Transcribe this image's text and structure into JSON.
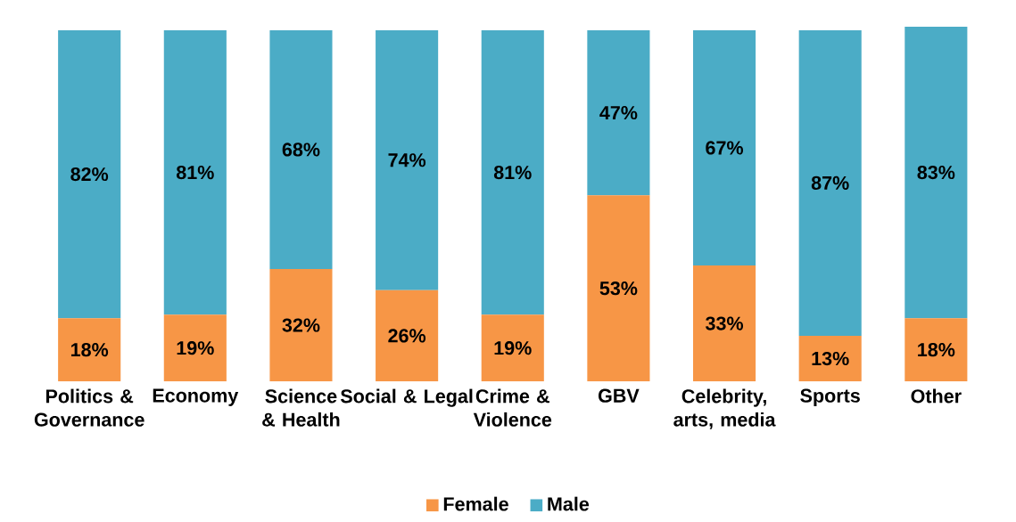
{
  "chart_data": {
    "type": "bar",
    "stacked": true,
    "legend": "bottom",
    "categories": [
      "Politics & Governance",
      "Economy",
      "Science & Health",
      "Social & Legal",
      "Crime & Violence",
      "GBV",
      "Celebrity, arts, media",
      "Sports",
      "Other"
    ],
    "series": [
      {
        "name": "Female",
        "color": "#f79646",
        "values": [
          18,
          19,
          32,
          26,
          19,
          53,
          33,
          13,
          18
        ],
        "value_labels": [
          "18%",
          "19%",
          "32%",
          "26%",
          "19%",
          "53%",
          "33%",
          "13%",
          "18%"
        ]
      },
      {
        "name": "Male",
        "color": "#4bacc6",
        "values": [
          82,
          81,
          68,
          74,
          81,
          47,
          67,
          87,
          83
        ],
        "value_labels": [
          "82%",
          "81%",
          "68%",
          "74%",
          "81%",
          "47%",
          "67%",
          "87%",
          "83%"
        ]
      }
    ]
  }
}
